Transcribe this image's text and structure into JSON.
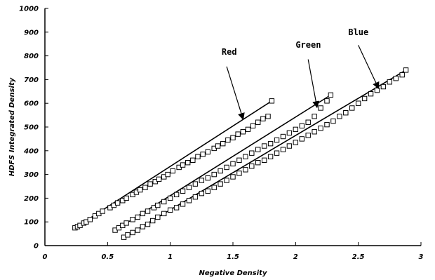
{
  "chart_data": {
    "type": "scatter",
    "title": "",
    "xlabel": "Negative Density",
    "ylabel": "HDFS Integrated Density",
    "xlim": [
      0,
      3
    ],
    "ylim": [
      0,
      1000
    ],
    "x_ticks": [
      "0",
      "0.5",
      "1",
      "1.5",
      "2",
      "2.5",
      "3"
    ],
    "x_tick_values": [
      0,
      0.5,
      1,
      1.5,
      2,
      2.5,
      3
    ],
    "y_ticks": [
      "0",
      "100",
      "200",
      "300",
      "400",
      "500",
      "600",
      "700",
      "800",
      "900",
      "1000"
    ],
    "y_tick_values": [
      0,
      100,
      200,
      300,
      400,
      500,
      600,
      700,
      800,
      900,
      1000
    ],
    "grid": false,
    "legend": "none",
    "marker": "open-square",
    "series": [
      {
        "name": "Red",
        "x": [
          0.24,
          0.26,
          0.28,
          0.31,
          0.33,
          0.36,
          0.4,
          0.43,
          0.46,
          0.52,
          0.55,
          0.58,
          0.62,
          0.65,
          0.7,
          0.73,
          0.76,
          0.8,
          0.84,
          0.88,
          0.91,
          0.95,
          0.98,
          1.02,
          1.07,
          1.1,
          1.14,
          1.18,
          1.22,
          1.26,
          1.3,
          1.35,
          1.38,
          1.42,
          1.46,
          1.5,
          1.54,
          1.58,
          1.62,
          1.66,
          1.7,
          1.74,
          1.78,
          1.81
        ],
        "y": [
          75,
          80,
          85,
          95,
          100,
          110,
          125,
          135,
          145,
          160,
          170,
          180,
          190,
          200,
          215,
          225,
          235,
          245,
          260,
          270,
          280,
          290,
          300,
          315,
          330,
          340,
          350,
          360,
          375,
          385,
          395,
          410,
          420,
          430,
          445,
          455,
          470,
          480,
          490,
          505,
          520,
          535,
          545,
          610
        ],
        "fit": [
          [
            0.24,
            75
          ],
          [
            1.81,
            610
          ]
        ]
      },
      {
        "name": "Green",
        "x": [
          0.56,
          0.59,
          0.62,
          0.65,
          0.7,
          0.74,
          0.78,
          0.82,
          0.87,
          0.9,
          0.95,
          1.0,
          1.05,
          1.1,
          1.15,
          1.2,
          1.25,
          1.3,
          1.35,
          1.4,
          1.45,
          1.5,
          1.55,
          1.6,
          1.65,
          1.7,
          1.75,
          1.8,
          1.85,
          1.9,
          1.95,
          2.0,
          2.05,
          2.1,
          2.15,
          2.2,
          2.25,
          2.28
        ],
        "y": [
          65,
          75,
          85,
          95,
          110,
          120,
          135,
          145,
          160,
          170,
          185,
          200,
          215,
          230,
          245,
          260,
          275,
          285,
          300,
          315,
          330,
          345,
          360,
          375,
          390,
          405,
          420,
          430,
          445,
          460,
          475,
          490,
          505,
          520,
          545,
          580,
          610,
          635
        ],
        "fit": [
          [
            0.56,
            65
          ],
          [
            2.28,
            635
          ]
        ]
      },
      {
        "name": "Blue",
        "x": [
          0.63,
          0.66,
          0.7,
          0.74,
          0.78,
          0.82,
          0.86,
          0.9,
          0.95,
          1.0,
          1.05,
          1.1,
          1.15,
          1.2,
          1.25,
          1.3,
          1.35,
          1.4,
          1.45,
          1.5,
          1.55,
          1.6,
          1.65,
          1.7,
          1.75,
          1.8,
          1.85,
          1.9,
          1.95,
          2.0,
          2.05,
          2.1,
          2.15,
          2.2,
          2.25,
          2.3,
          2.35,
          2.4,
          2.45,
          2.5,
          2.55,
          2.6,
          2.65,
          2.7,
          2.75,
          2.8,
          2.85,
          2.88
        ],
        "y": [
          35,
          45,
          55,
          65,
          80,
          90,
          105,
          120,
          135,
          150,
          160,
          175,
          190,
          205,
          220,
          230,
          245,
          260,
          275,
          290,
          305,
          320,
          335,
          350,
          360,
          375,
          390,
          405,
          420,
          435,
          450,
          465,
          480,
          495,
          510,
          525,
          545,
          560,
          580,
          600,
          620,
          640,
          655,
          670,
          690,
          705,
          720,
          740
        ],
        "fit": [
          [
            0.63,
            35
          ],
          [
            2.88,
            740
          ]
        ]
      }
    ],
    "annotations": [
      {
        "text": "Red",
        "text_at": [
          1.41,
          805
        ],
        "arrow_from": [
          1.45,
          755
        ],
        "arrow_to": [
          1.58,
          535
        ]
      },
      {
        "text": "Green",
        "text_at": [
          2.0,
          835
        ],
        "arrow_from": [
          2.1,
          785
        ],
        "arrow_to": [
          2.17,
          585
        ]
      },
      {
        "text": "Blue",
        "text_at": [
          2.42,
          888
        ],
        "arrow_from": [
          2.5,
          845
        ],
        "arrow_to": [
          2.66,
          665
        ]
      }
    ]
  }
}
